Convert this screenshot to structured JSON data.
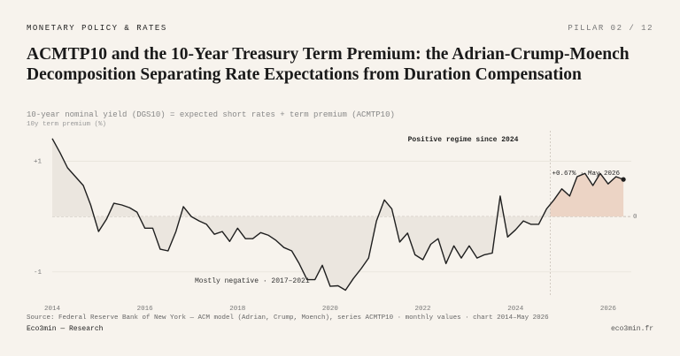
{
  "header": {
    "section": "MONETARY POLICY & RATES",
    "pillar": "PILLAR 02 / 12"
  },
  "chart_data": {
    "type": "line",
    "title": "ACMTP10 and the 10-Year Treasury Term Premium: the Adrian-Crump-Moench Decomposition Separating Rate Expectations from Duration Compensation",
    "subtitle": "10-year nominal yield (DGS10) = expected short rates + term premium (ACMTP10)",
    "y_label": "10y term premium (%)",
    "x": [
      2014,
      2014.17,
      2014.33,
      2014.5,
      2014.67,
      2014.83,
      2015,
      2015.17,
      2015.33,
      2015.5,
      2015.67,
      2015.83,
      2016,
      2016.17,
      2016.33,
      2016.5,
      2016.67,
      2016.83,
      2017,
      2017.17,
      2017.33,
      2017.5,
      2017.67,
      2017.83,
      2018,
      2018.17,
      2018.33,
      2018.5,
      2018.67,
      2018.83,
      2019,
      2019.17,
      2019.33,
      2019.5,
      2019.67,
      2019.83,
      2020,
      2020.17,
      2020.33,
      2020.5,
      2020.67,
      2020.83,
      2021,
      2021.17,
      2021.33,
      2021.5,
      2021.67,
      2021.83,
      2022,
      2022.17,
      2022.33,
      2022.5,
      2022.67,
      2022.83,
      2023,
      2023.17,
      2023.33,
      2023.5,
      2023.67,
      2023.83,
      2024,
      2024.17,
      2024.33,
      2024.5,
      2024.67,
      2024.83,
      2025,
      2025.17,
      2025.33,
      2025.5,
      2025.67,
      2025.83,
      2026,
      2026.17,
      2026.33
    ],
    "series": [
      {
        "name": "ACMTP10",
        "color": "#1f1f1f",
        "values": [
          1.41,
          1.15,
          0.88,
          0.72,
          0.56,
          0.21,
          -0.27,
          -0.05,
          0.24,
          0.21,
          0.16,
          0.08,
          -0.21,
          -0.21,
          -0.59,
          -0.62,
          -0.27,
          0.18,
          0,
          -0.08,
          -0.14,
          -0.32,
          -0.27,
          -0.45,
          -0.21,
          -0.4,
          -0.4,
          -0.29,
          -0.34,
          -0.43,
          -0.56,
          -0.62,
          -0.85,
          -1.14,
          -1.14,
          -0.88,
          -1.26,
          -1.25,
          -1.33,
          -1.12,
          -0.94,
          -0.75,
          -0.08,
          0.3,
          0.14,
          -0.46,
          -0.3,
          -0.69,
          -0.78,
          -0.5,
          -0.4,
          -0.85,
          -0.53,
          -0.75,
          -0.53,
          -0.75,
          -0.69,
          -0.66,
          0.37,
          -0.37,
          -0.24,
          -0.08,
          -0.14,
          -0.14,
          0.14,
          0.3,
          0.5,
          0.37,
          0.72,
          0.78,
          0.56,
          0.78,
          0.59,
          0.72,
          0.67
        ]
      }
    ],
    "xlim": [
      2014,
      2026.5
    ],
    "xticks": [
      2014,
      2016,
      2018,
      2020,
      2022,
      2024,
      2026
    ],
    "ylim": [
      -1.45,
      1.55
    ],
    "yticks": [
      {
        "value": 1,
        "label": "+1"
      },
      0,
      -1
    ],
    "grid": true,
    "negative_fill": "#ebe6df",
    "positive_fill": "#ecd4c5",
    "regime_start": 2024.75,
    "regime_label": "Positive regime since 2024",
    "negative_label": "Mostly negative · 2017–2021",
    "end_label": "+0.67% · May 2026"
  },
  "footer": {
    "source": "Source: Federal Reserve Bank of New York — ACM model (Adrian, Crump, Moench), series ACMTP10 · monthly values · chart 2014–May 2026",
    "brand": "Eco3min — Research",
    "site": "eco3min.fr"
  }
}
